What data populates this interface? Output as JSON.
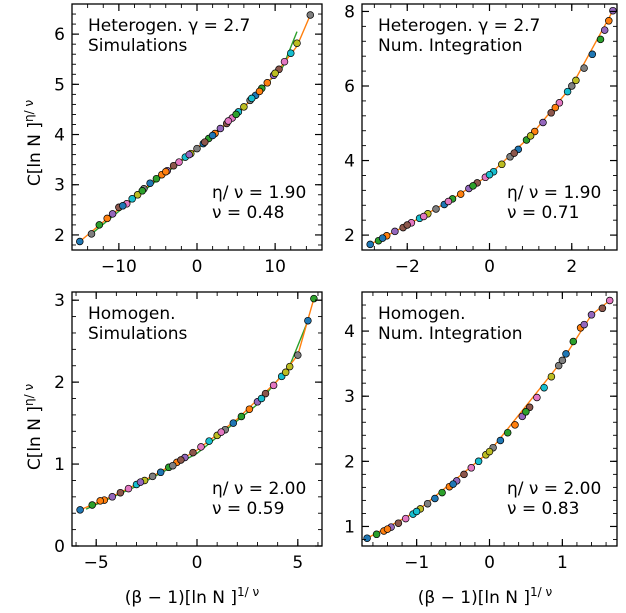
{
  "figure": {
    "y_label": "C[ln N ]",
    "y_label_sup": "η/ ν",
    "x_label": "(β − 1)[ln N ]",
    "x_label_sup": "1/ ν"
  },
  "colors": {
    "series_palette": [
      "#1f77b4",
      "#2ca02c",
      "#ff7f0e",
      "#9467bd",
      "#8c564b",
      "#e377c2",
      "#17becf",
      "#bcbd22",
      "#7f7f7f"
    ],
    "fit_line_a": "#ff7f0e",
    "fit_line_b": "#2ca02c"
  },
  "chart_data": [
    {
      "type": "scatter",
      "panel": "top-left",
      "legend_lines": [
        "Heterogen. γ = 2.7",
        "Simulations"
      ],
      "params_lines": [
        "η/ ν = 1.90",
        "ν = 0.48"
      ],
      "xlim": [
        -16,
        16
      ],
      "ylim": [
        1.7,
        6.6
      ],
      "x_ticks": [
        -10,
        0,
        10
      ],
      "x_tick_labels": [
        "−10",
        "0",
        "10"
      ],
      "y_ticks": [
        2,
        3,
        4,
        5,
        6
      ],
      "y_tick_labels": [
        "2",
        "3",
        "4",
        "5",
        "6"
      ],
      "points": [
        [
          -15,
          1.87
        ],
        [
          -12.5,
          2.2
        ],
        [
          -11.5,
          2.33
        ],
        [
          -10.8,
          2.42
        ],
        [
          -10,
          2.55
        ],
        [
          -9,
          2.62
        ],
        [
          -8.3,
          2.72
        ],
        [
          -7.6,
          2.8
        ],
        [
          -6.8,
          2.92
        ],
        [
          -6,
          3.03
        ],
        [
          -5.2,
          3.12
        ],
        [
          -4.5,
          3.2
        ],
        [
          -3.8,
          3.28
        ],
        [
          -3,
          3.38
        ],
        [
          -2.3,
          3.45
        ],
        [
          -1.5,
          3.55
        ],
        [
          -0.8,
          3.62
        ],
        [
          0,
          3.72
        ],
        [
          0.8,
          3.82
        ],
        [
          1.5,
          3.92
        ],
        [
          2.3,
          4.02
        ],
        [
          3,
          4.12
        ],
        [
          3.8,
          4.22
        ],
        [
          4.5,
          4.33
        ],
        [
          5.3,
          4.45
        ],
        [
          6,
          4.55
        ],
        [
          6.8,
          4.68
        ],
        [
          7.5,
          4.78
        ],
        [
          8.3,
          4.92
        ],
        [
          9,
          5.03
        ],
        [
          9.8,
          5.18
        ],
        [
          10.5,
          5.3
        ],
        [
          11.2,
          5.45
        ],
        [
          12,
          5.62
        ],
        [
          12.8,
          5.82
        ],
        [
          14.5,
          6.38
        ],
        [
          -9.5,
          2.58
        ],
        [
          -7,
          2.88
        ],
        [
          -4,
          3.26
        ],
        [
          -1,
          3.6
        ],
        [
          1,
          3.85
        ],
        [
          4,
          4.27
        ],
        [
          7,
          4.72
        ],
        [
          10,
          5.22
        ],
        [
          -13.5,
          2.02
        ],
        [
          2,
          3.98
        ],
        [
          5,
          4.4
        ],
        [
          8,
          4.86
        ]
      ],
      "line_orange": [
        [
          -15,
          1.87
        ],
        [
          -10,
          2.52
        ],
        [
          -5,
          3.14
        ],
        [
          0,
          3.73
        ],
        [
          5,
          4.38
        ],
        [
          10,
          5.2
        ],
        [
          12.8,
          5.76
        ],
        [
          14.5,
          6.38
        ]
      ],
      "line_green": [
        [
          -13.5,
          2.02
        ],
        [
          -8,
          2.73
        ],
        [
          -3,
          3.35
        ],
        [
          2,
          3.95
        ],
        [
          7,
          4.7
        ],
        [
          11,
          5.35
        ],
        [
          12.8,
          6.05
        ]
      ]
    },
    {
      "type": "scatter",
      "panel": "top-right",
      "legend_lines": [
        "Heterogen. γ = 2.7",
        "Num. Integration"
      ],
      "params_lines": [
        "η/ ν = 1.90",
        "ν = 0.71"
      ],
      "xlim": [
        -3.1,
        3.1
      ],
      "ylim": [
        1.6,
        8.2
      ],
      "x_ticks": [
        -2,
        0,
        2
      ],
      "x_tick_labels": [
        "−2",
        "0",
        "2"
      ],
      "y_ticks": [
        2,
        4,
        6,
        8
      ],
      "y_tick_labels": [
        "2",
        "4",
        "6",
        "8"
      ],
      "points": [
        [
          -2.9,
          1.75
        ],
        [
          -2.7,
          1.85
        ],
        [
          -2.5,
          1.98
        ],
        [
          -2.3,
          2.1
        ],
        [
          -2.1,
          2.2
        ],
        [
          -1.9,
          2.33
        ],
        [
          -1.7,
          2.45
        ],
        [
          -1.5,
          2.57
        ],
        [
          -1.3,
          2.7
        ],
        [
          -1.1,
          2.82
        ],
        [
          -0.9,
          2.97
        ],
        [
          -0.7,
          3.1
        ],
        [
          -0.5,
          3.25
        ],
        [
          -0.3,
          3.4
        ],
        [
          -0.1,
          3.55
        ],
        [
          0.1,
          3.7
        ],
        [
          0.3,
          3.9
        ],
        [
          0.5,
          4.1
        ],
        [
          0.7,
          4.3
        ],
        [
          0.9,
          4.55
        ],
        [
          1.1,
          4.78
        ],
        [
          1.3,
          5.02
        ],
        [
          1.5,
          5.28
        ],
        [
          1.7,
          5.55
        ],
        [
          1.9,
          5.85
        ],
        [
          2.1,
          6.15
        ],
        [
          2.3,
          6.48
        ],
        [
          2.5,
          6.85
        ],
        [
          2.7,
          7.25
        ],
        [
          2.9,
          7.75
        ],
        [
          3.0,
          8.02
        ],
        [
          -2.0,
          2.27
        ],
        [
          -1.0,
          2.9
        ],
        [
          0.0,
          3.62
        ],
        [
          1.0,
          4.66
        ],
        [
          2.0,
          6.0
        ],
        [
          -2.6,
          1.92
        ],
        [
          -0.4,
          3.32
        ],
        [
          1.6,
          5.42
        ],
        [
          2.8,
          7.5
        ],
        [
          0.6,
          4.2
        ],
        [
          -1.6,
          2.5
        ]
      ],
      "line_orange": [
        [
          -2.9,
          1.75
        ],
        [
          -2,
          2.27
        ],
        [
          -1,
          2.9
        ],
        [
          0,
          3.62
        ],
        [
          1,
          4.66
        ],
        [
          2,
          6.0
        ],
        [
          3.0,
          8.02
        ]
      ],
      "line_green": []
    },
    {
      "type": "scatter",
      "panel": "bottom-left",
      "legend_lines": [
        "Homogen.",
        "Simulations"
      ],
      "params_lines": [
        "η/ ν = 2.00",
        "ν = 0.59"
      ],
      "xlim": [
        -6.2,
        6.2
      ],
      "ylim": [
        0,
        3.1
      ],
      "x_ticks": [
        -5,
        0,
        5
      ],
      "x_tick_labels": [
        "−5",
        "0",
        "5"
      ],
      "y_ticks": [
        0,
        1,
        2,
        3
      ],
      "y_tick_labels": [
        "0",
        "1",
        "2",
        "3"
      ],
      "points": [
        [
          -5.8,
          0.44
        ],
        [
          -5.2,
          0.5
        ],
        [
          -4.6,
          0.56
        ],
        [
          -4.2,
          0.6
        ],
        [
          -3.8,
          0.65
        ],
        [
          -3.4,
          0.7
        ],
        [
          -3.0,
          0.75
        ],
        [
          -2.6,
          0.8
        ],
        [
          -2.2,
          0.85
        ],
        [
          -1.8,
          0.9
        ],
        [
          -1.4,
          0.96
        ],
        [
          -1.0,
          1.02
        ],
        [
          -0.6,
          1.08
        ],
        [
          -0.2,
          1.14
        ],
        [
          0.2,
          1.21
        ],
        [
          0.6,
          1.28
        ],
        [
          1.0,
          1.35
        ],
        [
          1.4,
          1.42
        ],
        [
          1.8,
          1.5
        ],
        [
          2.2,
          1.58
        ],
        [
          2.6,
          1.67
        ],
        [
          3.0,
          1.76
        ],
        [
          3.4,
          1.86
        ],
        [
          3.8,
          1.96
        ],
        [
          4.2,
          2.07
        ],
        [
          4.6,
          2.19
        ],
        [
          5.0,
          2.33
        ],
        [
          5.5,
          2.75
        ],
        [
          5.8,
          3.02
        ],
        [
          -4.8,
          0.55
        ],
        [
          -2.8,
          0.78
        ],
        [
          -0.8,
          1.05
        ],
        [
          1.2,
          1.39
        ],
        [
          3.2,
          1.8
        ],
        [
          4.4,
          2.12
        ],
        [
          -1.2,
          0.98
        ]
      ],
      "line_orange": [
        [
          -5.8,
          0.44
        ],
        [
          -4,
          0.63
        ],
        [
          -2,
          0.88
        ],
        [
          0,
          1.17
        ],
        [
          2,
          1.55
        ],
        [
          4,
          2.02
        ],
        [
          5.0,
          2.33
        ],
        [
          5.8,
          3.02
        ]
      ],
      "line_green": [
        [
          -5.5,
          0.45
        ],
        [
          -3,
          0.73
        ],
        [
          0,
          1.13
        ],
        [
          3,
          1.73
        ],
        [
          4.6,
          2.2
        ],
        [
          5.5,
          2.75
        ]
      ]
    },
    {
      "type": "scatter",
      "panel": "bottom-right",
      "legend_lines": [
        "Homogen.",
        "Num. Integration"
      ],
      "params_lines": [
        "η/ ν = 2.00",
        "ν = 0.83"
      ],
      "xlim": [
        -1.75,
        1.75
      ],
      "ylim": [
        0.7,
        4.6
      ],
      "x_ticks": [
        -1,
        0,
        1
      ],
      "x_tick_labels": [
        "−1",
        "0",
        "1"
      ],
      "y_ticks": [
        1,
        2,
        3,
        4
      ],
      "y_tick_labels": [
        "1",
        "2",
        "3",
        "4"
      ],
      "points": [
        [
          -1.68,
          0.82
        ],
        [
          -1.55,
          0.88
        ],
        [
          -1.45,
          0.93
        ],
        [
          -1.35,
          0.99
        ],
        [
          -1.25,
          1.05
        ],
        [
          -1.15,
          1.12
        ],
        [
          -1.05,
          1.19
        ],
        [
          -0.95,
          1.27
        ],
        [
          -0.85,
          1.35
        ],
        [
          -0.75,
          1.43
        ],
        [
          -0.65,
          1.52
        ],
        [
          -0.55,
          1.61
        ],
        [
          -0.45,
          1.7
        ],
        [
          -0.35,
          1.8
        ],
        [
          -0.25,
          1.9
        ],
        [
          -0.15,
          2.0
        ],
        [
          -0.05,
          2.1
        ],
        [
          0.05,
          2.21
        ],
        [
          0.15,
          2.32
        ],
        [
          0.25,
          2.44
        ],
        [
          0.35,
          2.56
        ],
        [
          0.45,
          2.69
        ],
        [
          0.55,
          2.83
        ],
        [
          0.65,
          2.98
        ],
        [
          0.75,
          3.13
        ],
        [
          0.85,
          3.3
        ],
        [
          0.95,
          3.47
        ],
        [
          1.05,
          3.65
        ],
        [
          1.15,
          3.84
        ],
        [
          1.25,
          4.05
        ],
        [
          1.4,
          4.25
        ],
        [
          1.55,
          4.35
        ],
        [
          1.65,
          4.47
        ],
        [
          -1.0,
          1.23
        ],
        [
          0.0,
          2.15
        ],
        [
          1.0,
          3.55
        ],
        [
          -0.5,
          1.65
        ],
        [
          0.5,
          2.76
        ],
        [
          -1.4,
          0.96
        ],
        [
          1.3,
          4.1
        ]
      ],
      "line_orange": [
        [
          -1.68,
          0.82
        ],
        [
          -1,
          1.23
        ],
        [
          0,
          2.15
        ],
        [
          1,
          3.55
        ],
        [
          1.4,
          4.25
        ],
        [
          1.65,
          4.47
        ]
      ],
      "line_green": []
    }
  ]
}
